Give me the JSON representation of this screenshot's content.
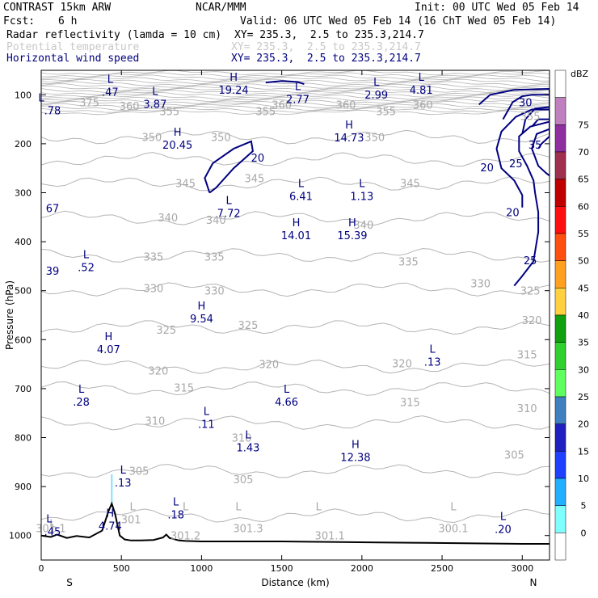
{
  "header": {
    "model": "CONTRAST 15km ARW",
    "center": "NCAR/MMM",
    "init": "Init: 00 UTC Wed 05 Feb 14",
    "fcst_label": "Fcst:",
    "fcst_value": "6 h",
    "valid": "Valid: 06 UTC Wed 05 Feb 14 (16 ChT Wed 05 Feb 14)",
    "fields": [
      {
        "name": "Radar reflectivity (lamda = 10 cm)",
        "xy": "XY= 235.3,  2.5 to 235.3,214.7"
      },
      {
        "name": "Potential temperature",
        "xy": "XY= 235.3,  2.5 to 235.3,214.7"
      },
      {
        "name": "Horizontal wind speed",
        "xy": "XY= 235.3,  2.5 to 235.3,214.7"
      }
    ]
  },
  "colors": {
    "theta": "#b4b4b4",
    "wind": "#000080",
    "terrain": "#000000",
    "reflectivity_spike": "#80e0ff"
  },
  "chart_data": {
    "type": "cross-section",
    "xlabel": "Distance (km)",
    "ylabel": "Pressure (hPa)",
    "xlim": [
      0,
      3170
    ],
    "ylim": [
      1050,
      50
    ],
    "xticks": [
      0,
      500,
      1000,
      1500,
      2000,
      2500,
      3000
    ],
    "yticks": [
      100,
      200,
      300,
      400,
      500,
      600,
      700,
      800,
      900,
      1000
    ],
    "x_endpoints": {
      "left": "S",
      "right": "N"
    },
    "colorbar": {
      "unit": "dBZ",
      "levels": [
        0,
        5,
        10,
        15,
        20,
        25,
        30,
        35,
        40,
        45,
        50,
        55,
        60,
        65,
        70,
        75
      ],
      "colors": [
        "#ffffff",
        "#80ffff",
        "#20b0ff",
        "#2040ff",
        "#2020c0",
        "#4080c0",
        "#60ff60",
        "#30d030",
        "#10a010",
        "#ffd040",
        "#ffa020",
        "#ff5010",
        "#ff1010",
        "#c00000",
        "#a03050",
        "#9030a0",
        "#c080c0",
        "#ffffff"
      ]
    },
    "theta_labels": [
      {
        "text": "375",
        "x": 300,
        "p": 115
      },
      {
        "text": "360",
        "x": 550,
        "p": 123
      },
      {
        "text": "355",
        "x": 800,
        "p": 133
      },
      {
        "text": "355",
        "x": 1400,
        "p": 133
      },
      {
        "text": "360",
        "x": 1500,
        "p": 120
      },
      {
        "text": "360",
        "x": 1900,
        "p": 120
      },
      {
        "text": "355",
        "x": 2150,
        "p": 133
      },
      {
        "text": "360",
        "x": 2380,
        "p": 120
      },
      {
        "text": "355",
        "x": 3050,
        "p": 143
      },
      {
        "text": "350",
        "x": 690,
        "p": 186
      },
      {
        "text": "350",
        "x": 1120,
        "p": 186
      },
      {
        "text": "350",
        "x": 2080,
        "p": 186
      },
      {
        "text": "345",
        "x": 900,
        "p": 280
      },
      {
        "text": "345",
        "x": 1330,
        "p": 270
      },
      {
        "text": "345",
        "x": 2300,
        "p": 280
      },
      {
        "text": "340",
        "x": 790,
        "p": 350
      },
      {
        "text": "340",
        "x": 1090,
        "p": 355
      },
      {
        "text": "340",
        "x": 2010,
        "p": 365
      },
      {
        "text": "335",
        "x": 700,
        "p": 430
      },
      {
        "text": "335",
        "x": 1080,
        "p": 430
      },
      {
        "text": "335",
        "x": 2290,
        "p": 440
      },
      {
        "text": "330",
        "x": 700,
        "p": 495
      },
      {
        "text": "330",
        "x": 1080,
        "p": 500
      },
      {
        "text": "330",
        "x": 2740,
        "p": 485
      },
      {
        "text": "325",
        "x": 780,
        "p": 580
      },
      {
        "text": "325",
        "x": 1290,
        "p": 570
      },
      {
        "text": "325",
        "x": 3050,
        "p": 500
      },
      {
        "text": "320",
        "x": 730,
        "p": 663
      },
      {
        "text": "320",
        "x": 1420,
        "p": 650
      },
      {
        "text": "320",
        "x": 2250,
        "p": 648
      },
      {
        "text": "320",
        "x": 3060,
        "p": 560
      },
      {
        "text": "315",
        "x": 890,
        "p": 698
      },
      {
        "text": "315",
        "x": 2300,
        "p": 727
      },
      {
        "text": "315",
        "x": 3030,
        "p": 630
      },
      {
        "text": "310",
        "x": 710,
        "p": 765
      },
      {
        "text": "310",
        "x": 1250,
        "p": 800
      },
      {
        "text": "310",
        "x": 3030,
        "p": 740
      },
      {
        "text": "305",
        "x": 610,
        "p": 868
      },
      {
        "text": "305",
        "x": 1260,
        "p": 885
      },
      {
        "text": "305",
        "x": 2950,
        "p": 835
      },
      {
        "text": "301",
        "x": 560,
        "p": 967
      },
      {
        "text": "301.1",
        "x": 60,
        "p": 985
      },
      {
        "text": "301.2",
        "x": 900,
        "p": 1000
      },
      {
        "text": "301.3",
        "x": 1290,
        "p": 985
      },
      {
        "text": "301.1",
        "x": 1800,
        "p": 1000
      },
      {
        "text": "300.1",
        "x": 2570,
        "p": 985
      }
    ],
    "theta_minmax": [
      {
        "type": "L",
        "x": 70,
        "p": 1000
      },
      {
        "type": "L",
        "x": 570,
        "p": 965
      },
      {
        "type": "L",
        "x": 900,
        "p": 965
      },
      {
        "type": "L",
        "x": 1230,
        "p": 965
      },
      {
        "type": "L",
        "x": 1730,
        "p": 965
      },
      {
        "type": "L",
        "x": 2570,
        "p": 965
      }
    ],
    "wind_contours": [
      {
        "value": 20,
        "x": 1350,
        "p": 228
      },
      {
        "value": 20,
        "x": 2780,
        "p": 248
      },
      {
        "value": 20,
        "x": 2940,
        "p": 340
      },
      {
        "value": 25,
        "x": 2960,
        "p": 240
      },
      {
        "value": 25,
        "x": 3050,
        "p": 438
      },
      {
        "value": 30,
        "x": 3020,
        "p": 115
      },
      {
        "value": 35,
        "x": 3080,
        "p": 202
      }
    ],
    "wind_extrema": [
      {
        "type": "L",
        "value": ".47",
        "x": 430,
        "p": 82
      },
      {
        "type": "L",
        "value": "3.87",
        "x": 710,
        "p": 107
      },
      {
        "type": "H",
        "value": "19.24",
        "x": 1200,
        "p": 78
      },
      {
        "type": "L",
        "value": "2.77",
        "x": 1600,
        "p": 97
      },
      {
        "type": "L",
        "value": "2.99",
        "x": 2090,
        "p": 88
      },
      {
        "type": "L",
        "value": "4.81",
        "x": 2370,
        "p": 78
      },
      {
        "type": "L",
        "value": ".78",
        "x": 0,
        "p": 120
      },
      {
        "type": "H",
        "value": "14.73",
        "x": 1920,
        "p": 175
      },
      {
        "type": "H",
        "value": "20.45",
        "x": 850,
        "p": 190
      },
      {
        "type": "L",
        "value": "6.41",
        "x": 1620,
        "p": 295
      },
      {
        "type": "L",
        "value": "1.13",
        "x": 2000,
        "p": 295
      },
      {
        "type": "L",
        "value": "7.72",
        "x": 1170,
        "p": 330
      },
      {
        "type": "H",
        "value": "14.01",
        "x": 1590,
        "p": 375
      },
      {
        "type": "H",
        "value": "15.39",
        "x": 1940,
        "p": 375
      },
      {
        "type": "",
        "value": "67",
        "x": 0,
        "p": 320
      },
      {
        "type": "L",
        "value": ".52",
        "x": 280,
        "p": 440
      },
      {
        "type": "",
        "value": "39",
        "x": 0,
        "p": 448
      },
      {
        "type": "H",
        "value": "9.54",
        "x": 1000,
        "p": 545
      },
      {
        "type": "H",
        "value": "4.07",
        "x": 420,
        "p": 608
      },
      {
        "type": "L",
        "value": ".13",
        "x": 2440,
        "p": 633
      },
      {
        "type": "L",
        "value": ".28",
        "x": 250,
        "p": 715
      },
      {
        "type": "L",
        "value": "4.66",
        "x": 1530,
        "p": 715
      },
      {
        "type": "L",
        "value": ".11",
        "x": 1030,
        "p": 760
      },
      {
        "type": "L",
        "value": "1.43",
        "x": 1290,
        "p": 808
      },
      {
        "type": "H",
        "value": "12.38",
        "x": 1960,
        "p": 828
      },
      {
        "type": "L",
        "value": ".13",
        "x": 510,
        "p": 880
      },
      {
        "type": "L",
        "value": ".18",
        "x": 840,
        "p": 945
      },
      {
        "type": "H",
        "value": "4.74",
        "x": 430,
        "p": 968
      },
      {
        "type": "L",
        "value": ".45",
        "x": 50,
        "p": 980
      },
      {
        "type": "L",
        "value": ".20",
        "x": 2880,
        "p": 975
      }
    ],
    "terrain": {
      "x": [
        0,
        60,
        100,
        160,
        220,
        300,
        380,
        420,
        440,
        460,
        490,
        520,
        560,
        620,
        700,
        760,
        780,
        800,
        860,
        900,
        1000,
        1200,
        1500,
        1800,
        2100,
        2400,
        2700,
        3000,
        3170
      ],
      "p": [
        1000,
        1003,
        998,
        1005,
        1001,
        1004,
        990,
        950,
        935,
        955,
        1000,
        1008,
        1010,
        1010,
        1009,
        1004,
        998,
        1005,
        1010,
        1011,
        1012,
        1012,
        1012,
        1013,
        1014,
        1015,
        1016,
        1017,
        1017
      ]
    },
    "reflectivity_column": {
      "x": 440,
      "p_top": 875,
      "p_bottom": 935,
      "dbz": 5
    }
  }
}
